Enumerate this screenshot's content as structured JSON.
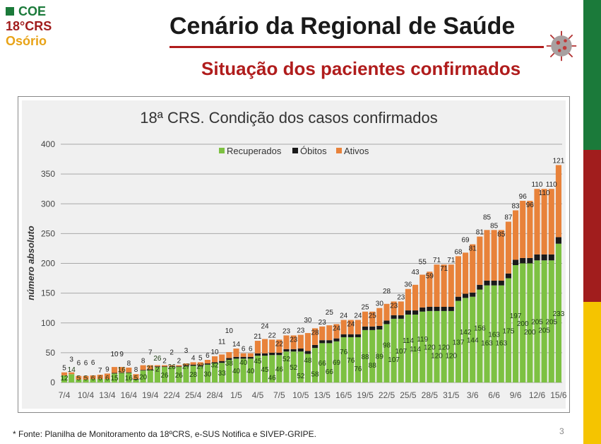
{
  "header": {
    "logo_line1": "COE",
    "logo_line2": "18°CRS",
    "logo_line3": "Osório",
    "title": "Cenário da Regional de Saúde",
    "subtitle": "Situação dos pacientes confirmados"
  },
  "footer": {
    "source": "* Fonte: Planilha de Monitoramento da 18ºCRS, e-SUS Notifica e SIVEP-GRIPE.",
    "page_number": "3"
  },
  "colors": {
    "recuperados": "#7dc142",
    "obitos": "#1a1a1a",
    "ativos": "#e8823a",
    "stripe": [
      "#1b7a3a",
      "#a11d1d",
      "#f5c400"
    ]
  },
  "chart_data": {
    "type": "bar",
    "stacked": true,
    "title": "18ª CRS. Condição dos casos confirmados",
    "ylabel": "número absoluto",
    "xlabel": "",
    "ylim": [
      0,
      400
    ],
    "yticks": [
      0,
      50,
      100,
      150,
      200,
      250,
      300,
      350,
      400
    ],
    "grid": true,
    "legend": "top-center",
    "start_date": "7/4",
    "xtick_labels": [
      "7/4",
      "10/4",
      "13/4",
      "16/4",
      "19/4",
      "22/4",
      "25/4",
      "28/4",
      "1/5",
      "4/5",
      "7/5",
      "10/5",
      "13/5",
      "16/5",
      "19/5",
      "22/5",
      "25/5",
      "28/5",
      "31/5",
      "3/6",
      "6/6",
      "9/6",
      "12/6",
      "15/6"
    ],
    "series": [
      {
        "name": "Recuperados",
        "values": [
          12,
          14,
          5,
          5,
          6,
          6,
          6,
          15,
          16,
          16,
          5,
          20,
          21,
          26,
          26,
          26,
          26,
          27,
          28,
          27,
          30,
          32,
          33,
          38,
          40,
          40,
          40,
          45,
          45,
          46,
          46,
          52,
          52,
          52,
          48,
          58,
          66,
          66,
          69,
          76,
          76,
          76,
          88,
          88,
          89,
          98,
          107,
          107,
          114,
          114,
          119,
          120,
          120,
          120,
          120,
          137,
          142,
          144,
          156,
          163,
          163,
          163,
          175,
          197,
          200,
          200,
          205,
          205,
          205,
          233
        ]
      },
      {
        "name": "Óbitos",
        "values": [
          0,
          0,
          0,
          0,
          0,
          0,
          0,
          1,
          1,
          1,
          1,
          1,
          1,
          1,
          1,
          1,
          1,
          2,
          2,
          2,
          2,
          2,
          3,
          3,
          3,
          3,
          3,
          4,
          4,
          4,
          4,
          4,
          4,
          5,
          5,
          5,
          5,
          5,
          5,
          5,
          5,
          5,
          6,
          6,
          6,
          6,
          6,
          6,
          7,
          7,
          7,
          7,
          7,
          7,
          7,
          7,
          7,
          7,
          8,
          8,
          8,
          8,
          8,
          9,
          9,
          9,
          10,
          10,
          10,
          11
        ]
      },
      {
        "name": "Ativos",
        "values": [
          5,
          3,
          6,
          6,
          6,
          7,
          9,
          10,
          9,
          8,
          8,
          8,
          7,
          2,
          2,
          2,
          2,
          3,
          4,
          5,
          6,
          10,
          11,
          10,
          14,
          6,
          6,
          21,
          24,
          22,
          22,
          23,
          23,
          23,
          30,
          28,
          23,
          25,
          24,
          24,
          24,
          24,
          25,
          25,
          30,
          28,
          23,
          23,
          36,
          43,
          55,
          59,
          71,
          71,
          71,
          68,
          69,
          81,
          81,
          85,
          85,
          85,
          87,
          83,
          96,
          96,
          110,
          110,
          110,
          121
        ]
      }
    ]
  }
}
